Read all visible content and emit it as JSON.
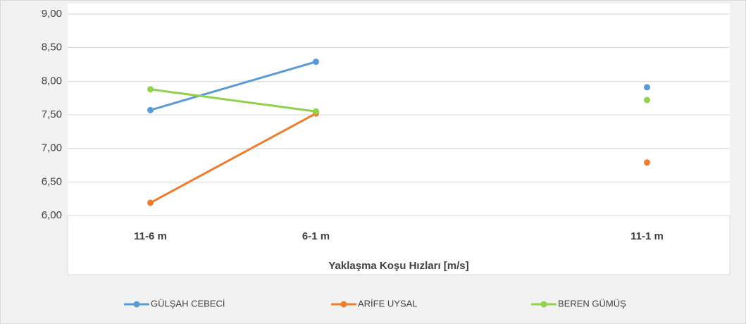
{
  "chart_data": {
    "type": "line",
    "x_label": "Yaklaşma Koşu Hızları [m/s]",
    "categories": [
      "11-6 m",
      "6-1 m",
      null,
      "11-1 m"
    ],
    "series": [
      {
        "name": "GÜLŞAH CEBECİ",
        "color": "#5b9bd5",
        "values": [
          7.57,
          8.29,
          null,
          7.91
        ]
      },
      {
        "name": "ARİFE UYSAL",
        "color": "#ed7d31",
        "values": [
          6.19,
          7.52,
          null,
          6.79
        ]
      },
      {
        "name": "BEREN GÜMÜŞ",
        "color": "#92d050",
        "values": [
          7.88,
          7.55,
          null,
          7.72
        ]
      }
    ],
    "ylim": [
      6,
      9
    ],
    "yticks": [
      {
        "value": 6,
        "label": "6,00"
      },
      {
        "value": 6.5,
        "label": "6,50"
      },
      {
        "value": 7,
        "label": "7,00"
      },
      {
        "value": 7.5,
        "label": "7,50"
      },
      {
        "value": 8,
        "label": "8,00"
      },
      {
        "value": 8.5,
        "label": "8,50"
      },
      {
        "value": 9,
        "label": "9,00"
      }
    ],
    "grid": true,
    "legend": "bottom"
  }
}
